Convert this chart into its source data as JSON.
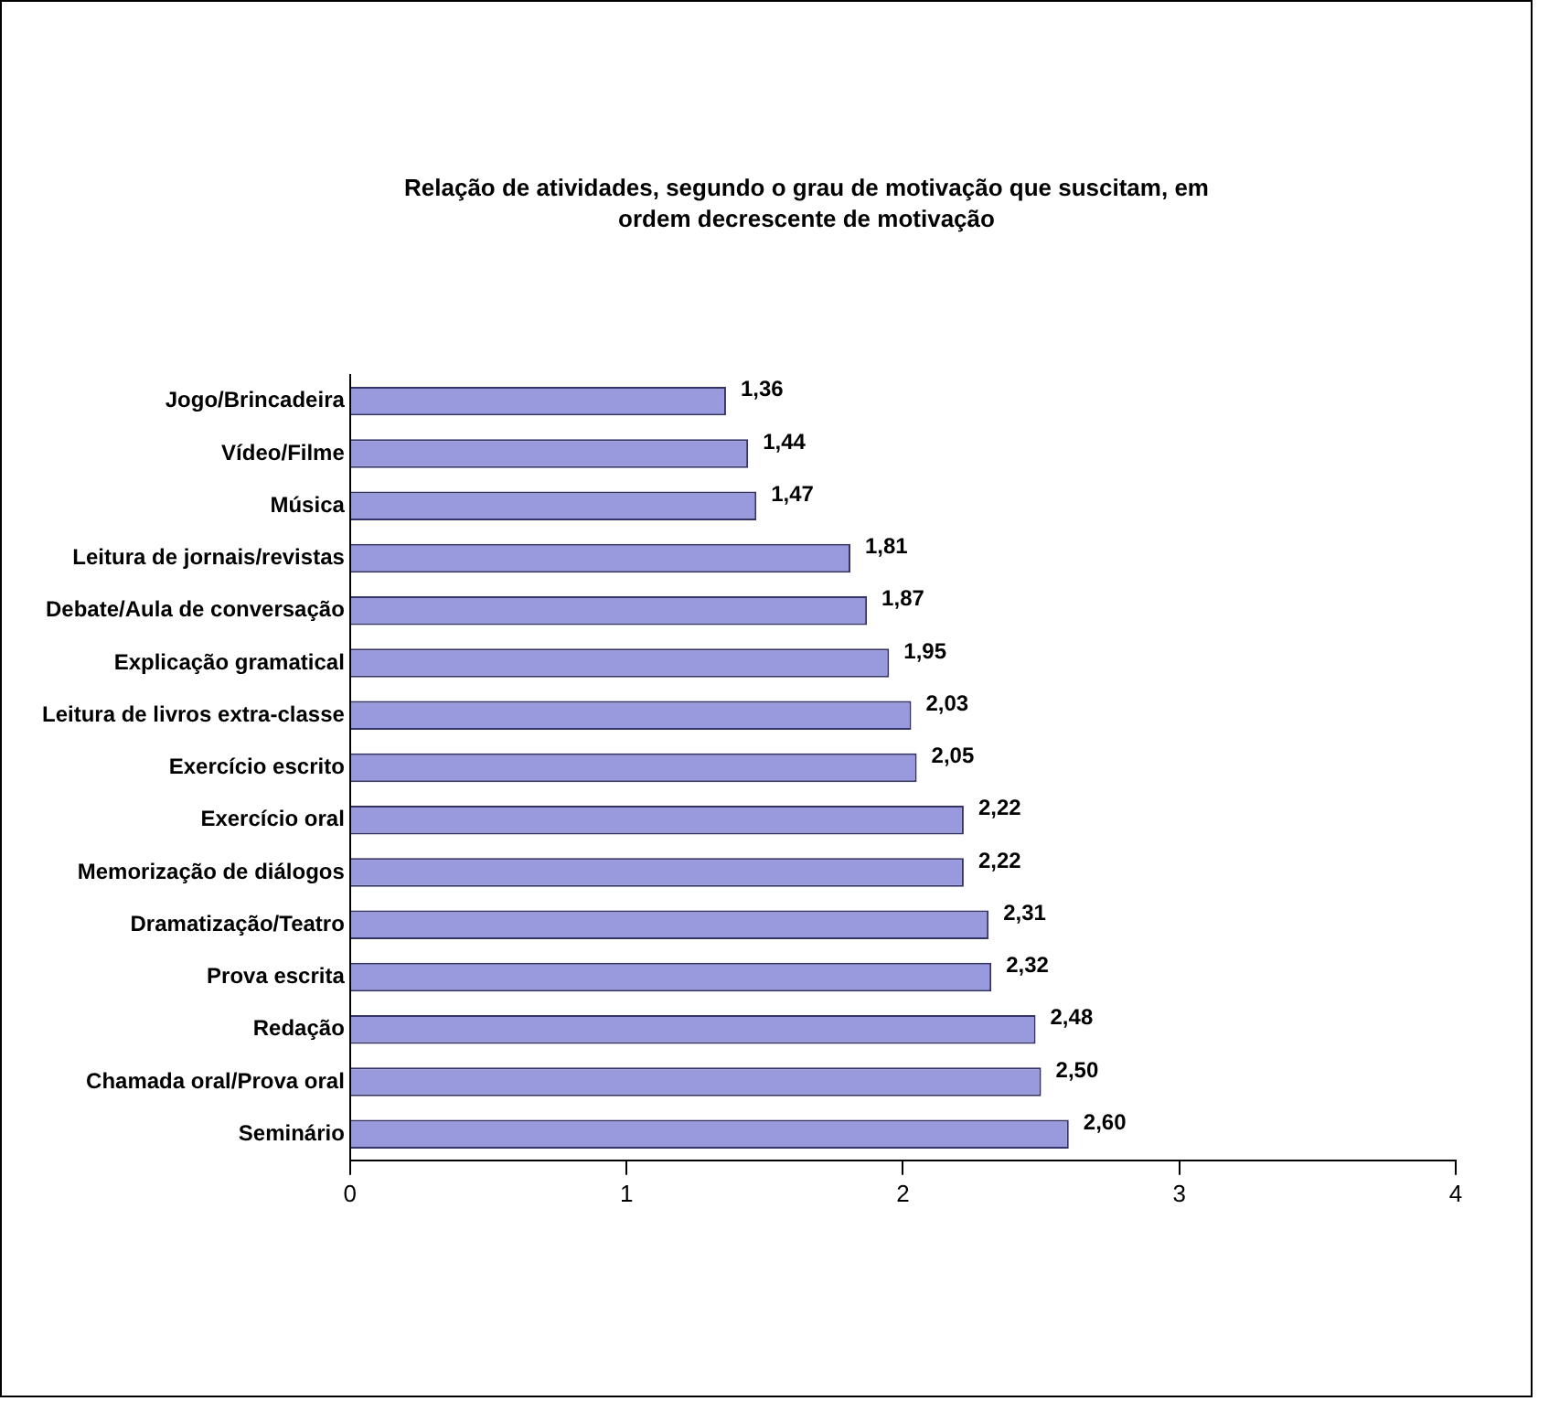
{
  "chart_data": {
    "type": "bar",
    "orientation": "horizontal",
    "title": "Relação de atividades, segundo o grau de motivação que suscitam, em ordem decrescente de motivação",
    "categories": [
      "Jogo/Brincadeira",
      "Vídeo/Filme",
      "Música",
      "Leitura de jornais/revistas",
      "Debate/Aula de conversação",
      "Explicação gramatical",
      "Leitura de livros extra-classe",
      "Exercício escrito",
      "Exercício oral",
      "Memorização de diálogos",
      "Dramatização/Teatro",
      "Prova escrita",
      "Redação",
      "Chamada oral/Prova oral",
      "Seminário"
    ],
    "values": [
      1.36,
      1.44,
      1.47,
      1.81,
      1.87,
      1.95,
      2.03,
      2.05,
      2.22,
      2.22,
      2.31,
      2.32,
      2.48,
      2.5,
      2.6
    ],
    "value_labels": [
      "1,36",
      "1,44",
      "1,47",
      "1,81",
      "1,87",
      "1,95",
      "2,03",
      "2,05",
      "2,22",
      "2,22",
      "2,31",
      "2,32",
      "2,48",
      "2,50",
      "2,60"
    ],
    "color": "#9999dd",
    "xlim": [
      0,
      4
    ],
    "xticks": [
      0,
      1,
      2,
      3,
      4
    ],
    "grid": false,
    "legend": false
  }
}
